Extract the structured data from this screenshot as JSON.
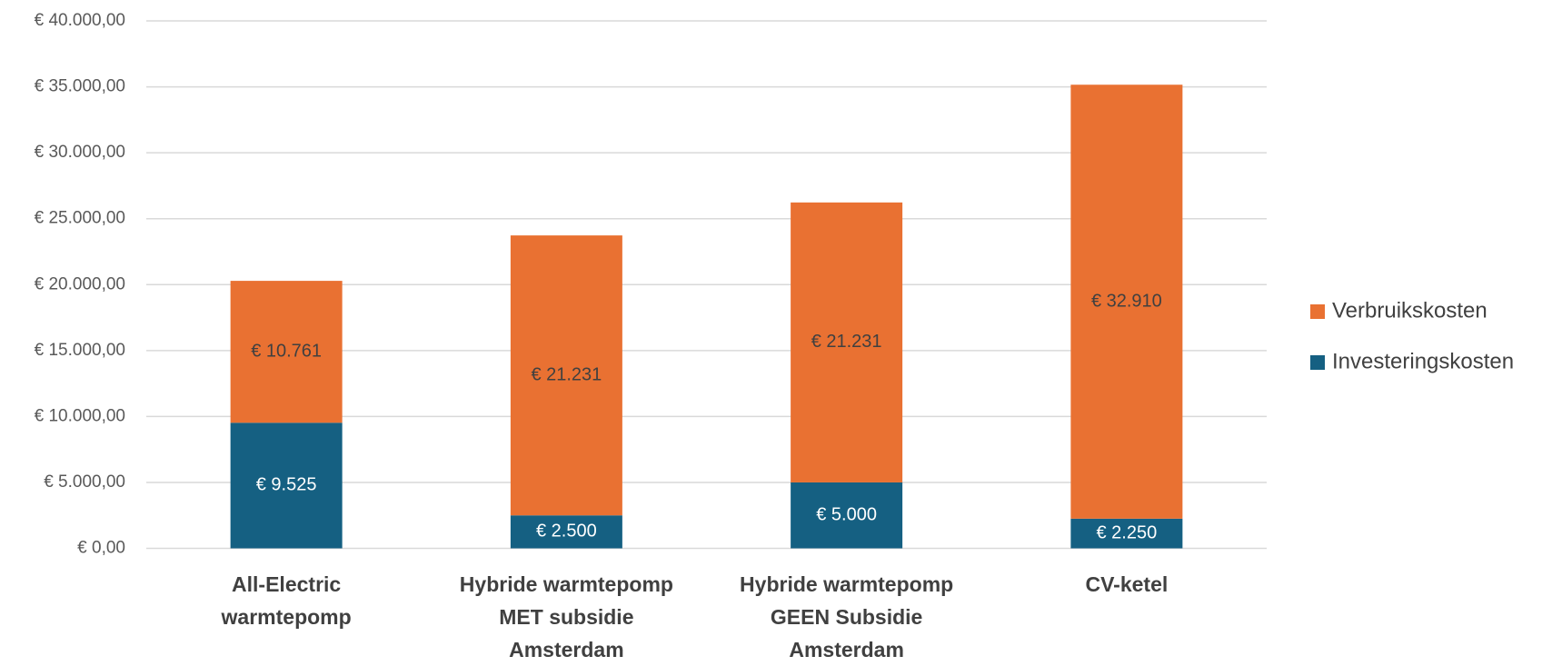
{
  "chart_data": {
    "type": "stacked_bar",
    "categories": [
      "All-Electric warmtepomp",
      "Hybride warmtepomp MET subsidie Amsterdam",
      "Hybride warmtepomp GEEN Subsidie Amsterdam",
      "CV-ketel"
    ],
    "series": [
      {
        "name": "Investeringskosten",
        "color": "#156082",
        "values": [
          9525,
          2500,
          5000,
          2250
        ],
        "value_labels": [
          "€ 9.525",
          "€ 2.500",
          "€ 5.000",
          "€ 2.250"
        ]
      },
      {
        "name": "Verbruikskosten",
        "color": "#e97132",
        "values": [
          10761,
          21231,
          21231,
          32910
        ],
        "value_labels": [
          "€ 10.761",
          "€ 21.231",
          "€ 21.231",
          "€ 32.910"
        ]
      }
    ],
    "ylim": [
      0,
      40000
    ],
    "yticks": [
      {
        "value": 0,
        "label": "€ 0,00"
      },
      {
        "value": 5000,
        "label": "€ 5.000,00"
      },
      {
        "value": 10000,
        "label": "€ 10.000,00"
      },
      {
        "value": 15000,
        "label": "€ 15.000,00"
      },
      {
        "value": 20000,
        "label": "€ 20.000,00"
      },
      {
        "value": 25000,
        "label": "€ 25.000,00"
      },
      {
        "value": 30000,
        "label": "€ 30.000,00"
      },
      {
        "value": 35000,
        "label": "€ 35.000,00"
      },
      {
        "value": 40000,
        "label": "€ 40.000,00"
      }
    ],
    "grid": true,
    "legend": "right"
  }
}
